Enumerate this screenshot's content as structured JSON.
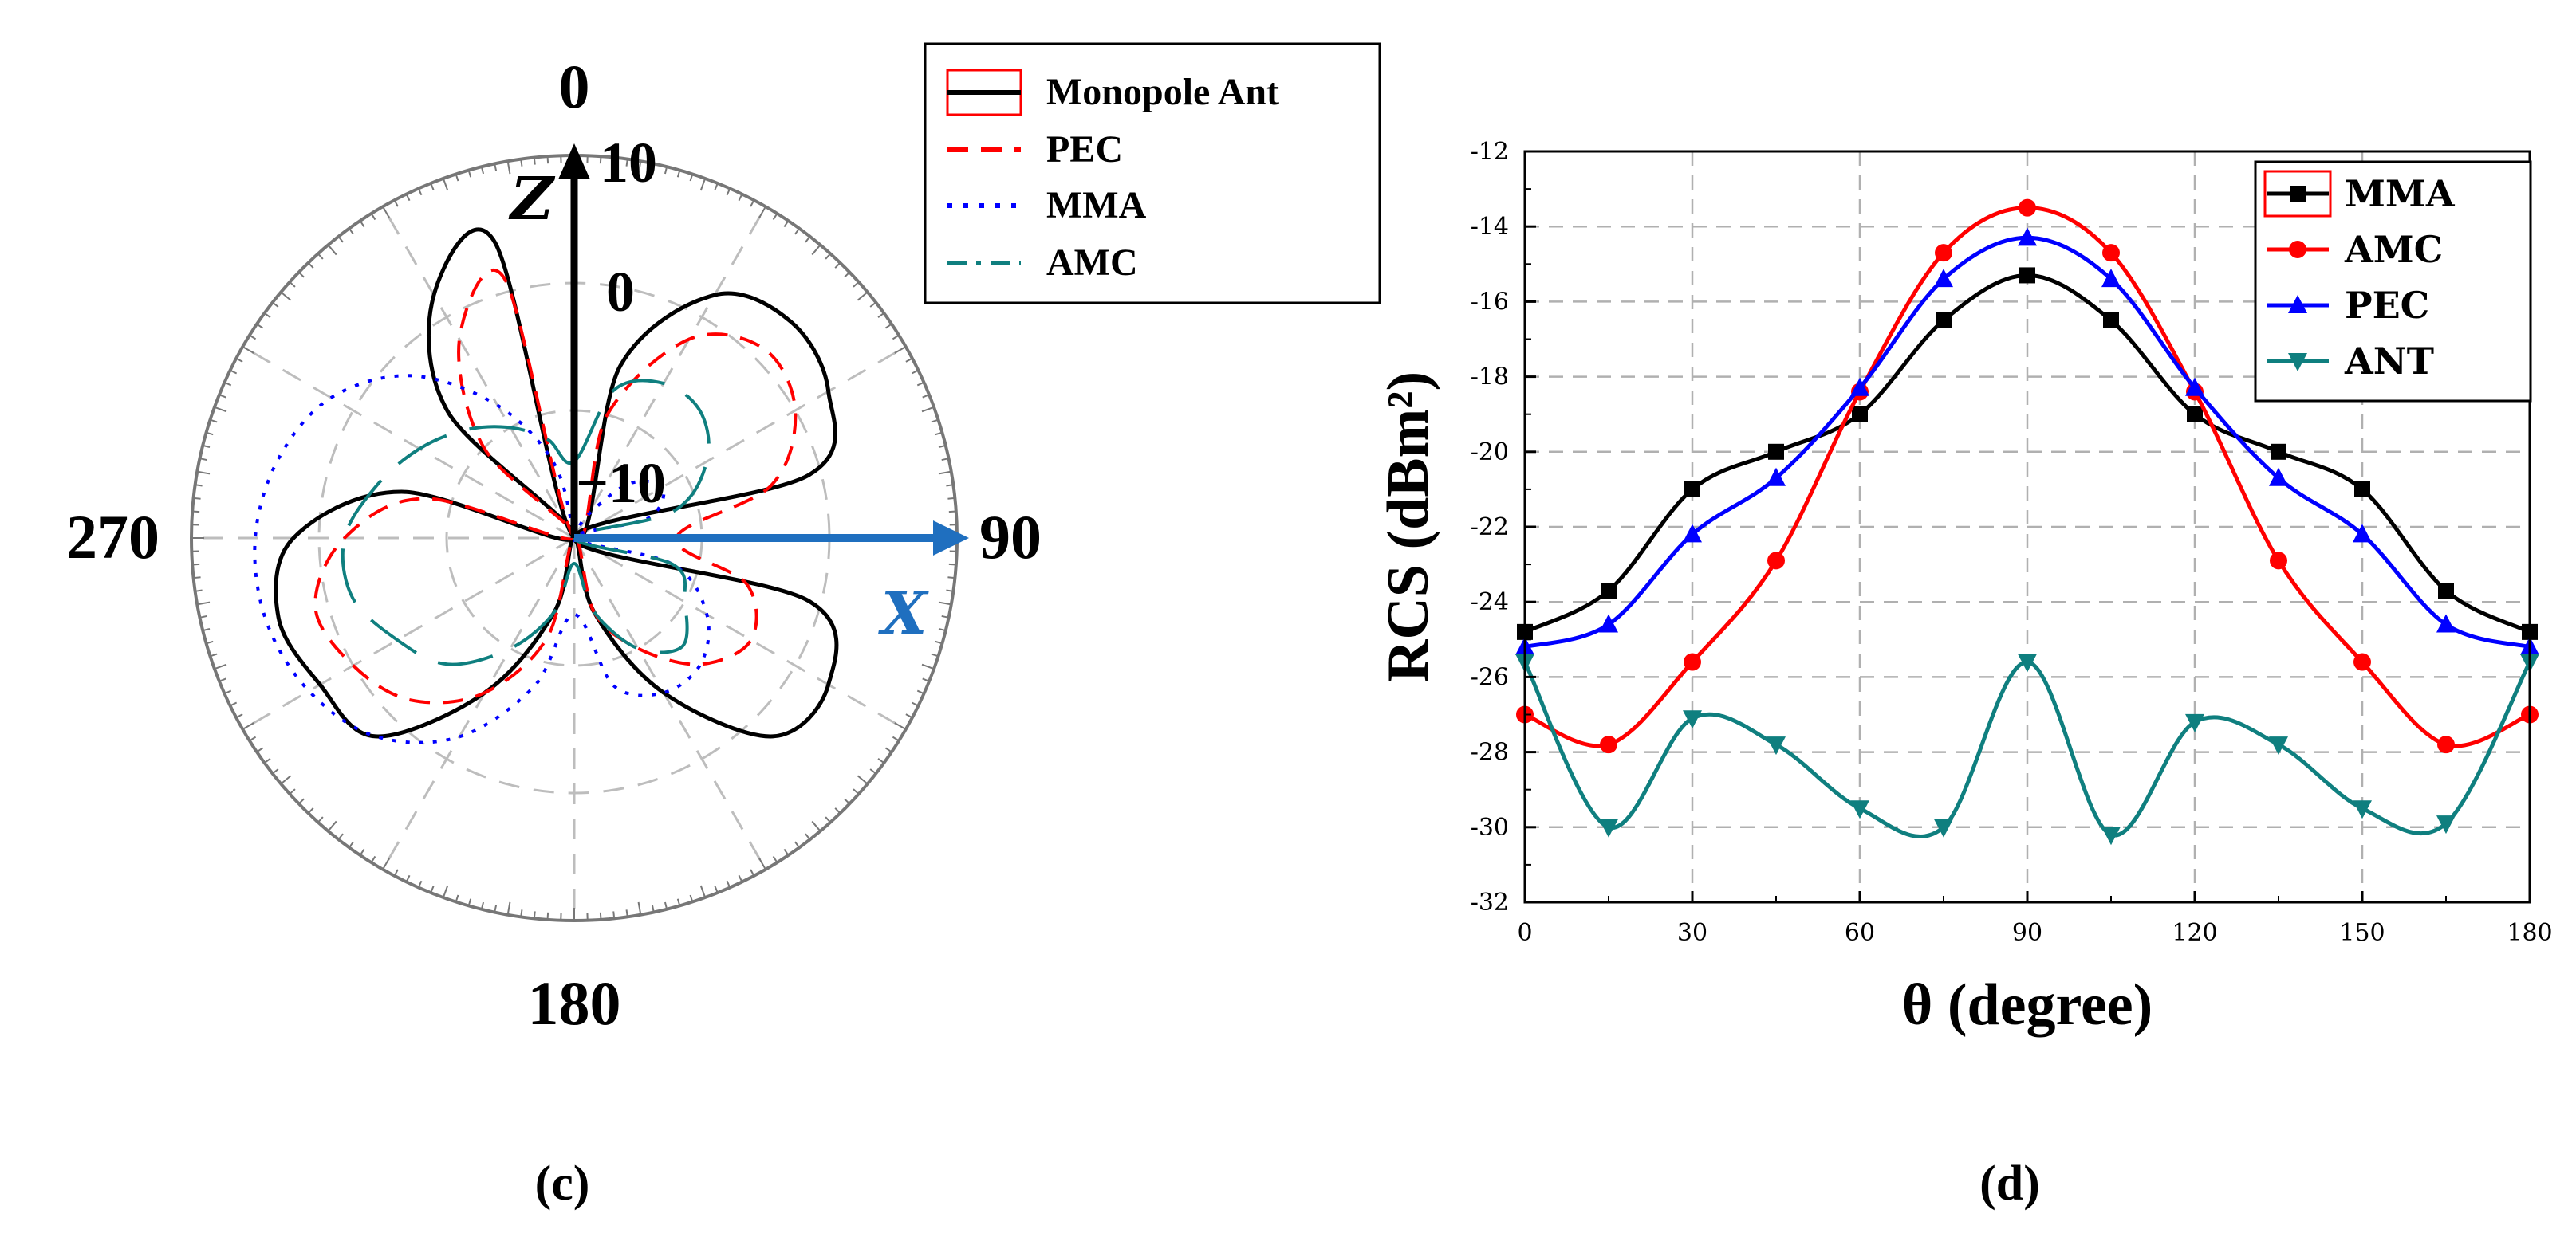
{
  "panel_c": {
    "caption": "(c)",
    "angle_labels": {
      "top": "0",
      "right": "90",
      "bottom": "180",
      "left": "270"
    },
    "ring_labels": [
      "10",
      "0",
      "−10"
    ],
    "z_label": "Z",
    "x_label": "X",
    "colors": {
      "z_arrow": "#000000",
      "x_arrow": "#1f6fbf",
      "x_label": "#1f6fbf"
    },
    "legend": [
      {
        "label": "Monopole Ant",
        "color": "#000000",
        "style": "solid",
        "box": true
      },
      {
        "label": "PEC",
        "color": "#ff0000",
        "style": "dashed"
      },
      {
        "label": "MMA",
        "color": "#0000ff",
        "style": "dotted"
      },
      {
        "label": "AMC",
        "color": "#0f7f7f",
        "style": "dashdot"
      }
    ]
  },
  "panel_d": {
    "caption": "(d)",
    "legend": [
      {
        "label": "MMA",
        "color": "#000000",
        "marker": "square"
      },
      {
        "label": "AMC",
        "color": "#ff0000",
        "marker": "circle"
      },
      {
        "label": "PEC",
        "color": "#0000ff",
        "marker": "triangle-up"
      },
      {
        "label": "ANT",
        "color": "#0f7f7f",
        "marker": "triangle-down"
      }
    ]
  },
  "chart_data": [
    {
      "type": "polar",
      "title": "",
      "angle_unit": "degree",
      "radial_unit": "dB",
      "radial_ticks": [
        10,
        0,
        -10
      ],
      "radial_range": [
        -20,
        10
      ],
      "angles": [
        0,
        15,
        30,
        45,
        60,
        75,
        90,
        105,
        120,
        135,
        150,
        165,
        180,
        195,
        210,
        225,
        240,
        255,
        270,
        285,
        300,
        315,
        330,
        345
      ],
      "series": [
        {
          "name": "Monopole Ant",
          "values": [
            -20,
            -6,
            2,
            4,
            3,
            -1,
            -20,
            -1,
            3,
            2,
            -6,
            -14,
            -20,
            -14,
            -6,
            2,
            3,
            4,
            2,
            -6,
            -20,
            -6,
            2,
            4
          ]
        },
        {
          "name": "PEC",
          "values": [
            -20,
            -10,
            -2,
            1,
            0,
            -4,
            -12,
            -6,
            -4,
            -6,
            -10,
            -14,
            -20,
            -12,
            -6,
            -2,
            0,
            1,
            -2,
            -8,
            -20,
            -10,
            -2,
            1
          ]
        },
        {
          "name": "MMA",
          "values": [
            -20,
            -20,
            -18,
            -14,
            -12,
            -14,
            -20,
            -12,
            -8,
            -6,
            -6,
            -8,
            -14,
            -8,
            -2,
            2,
            4,
            5,
            5,
            4,
            2,
            -2,
            -8,
            -14
          ]
        },
        {
          "name": "AMC",
          "values": [
            -14,
            -8,
            -6,
            -6,
            -8,
            -12,
            -20,
            -12,
            -10,
            -8,
            -10,
            -14,
            -18,
            -14,
            -10,
            -6,
            -4,
            -2,
            -2,
            -4,
            -6,
            -8,
            -10,
            -12
          ]
        }
      ]
    },
    {
      "type": "line",
      "title": "",
      "xlabel": "θ (degree)",
      "ylabel": "RCS (dBm²)",
      "xlim": [
        0,
        180
      ],
      "ylim": [
        -32,
        -12
      ],
      "xticks": [
        0,
        30,
        60,
        90,
        120,
        150,
        180
      ],
      "yticks": [
        -32,
        -30,
        -28,
        -26,
        -24,
        -22,
        -20,
        -18,
        -16,
        -14,
        -12
      ],
      "grid": true,
      "legend_position": "top-right",
      "x": [
        0,
        15,
        30,
        45,
        60,
        75,
        90,
        105,
        120,
        135,
        150,
        165,
        180
      ],
      "series": [
        {
          "name": "MMA",
          "values": [
            -24.8,
            -23.7,
            -21.0,
            -20.0,
            -19.0,
            -16.5,
            -15.3,
            -16.5,
            -19.0,
            -20.0,
            -21.0,
            -23.7,
            -24.8
          ]
        },
        {
          "name": "AMC",
          "values": [
            -27.0,
            -27.8,
            -25.6,
            -22.9,
            -18.4,
            -14.7,
            -13.5,
            -14.7,
            -18.4,
            -22.9,
            -25.6,
            -27.8,
            -27.0
          ]
        },
        {
          "name": "PEC",
          "values": [
            -25.2,
            -24.6,
            -22.2,
            -20.7,
            -18.3,
            -15.4,
            -14.3,
            -15.4,
            -18.3,
            -20.7,
            -22.2,
            -24.6,
            -25.2
          ]
        },
        {
          "name": "ANT",
          "values": [
            -25.6,
            -30.0,
            -27.1,
            -27.8,
            -29.5,
            -30.0,
            -25.6,
            -30.2,
            -27.2,
            -27.8,
            -29.5,
            -29.9,
            -25.6
          ]
        }
      ]
    }
  ]
}
